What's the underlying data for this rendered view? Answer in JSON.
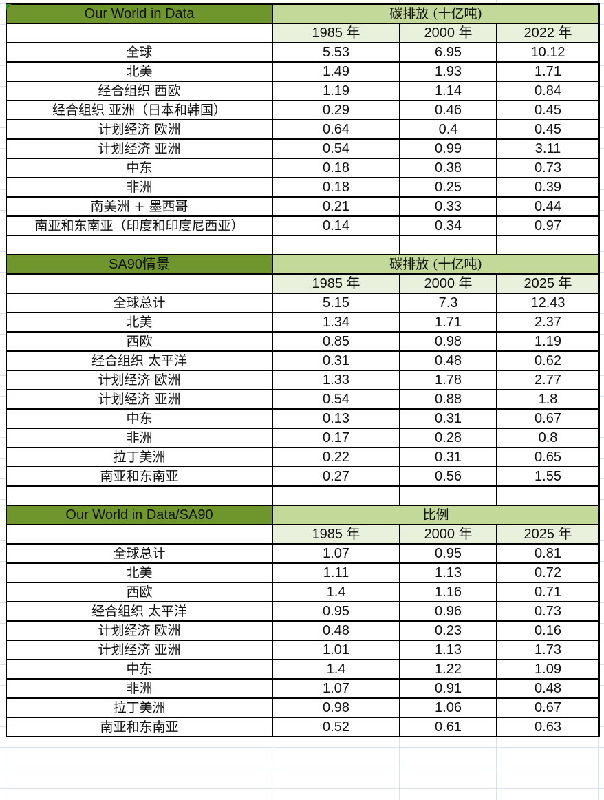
{
  "tables": [
    {
      "title": "Our World in Data",
      "header": "碳排放 (十亿吨)",
      "years": [
        "1985 年",
        "2000 年",
        "2022 年"
      ],
      "rows": [
        {
          "region": "全球",
          "values": [
            "5.53",
            "6.95",
            "10.12"
          ]
        },
        {
          "region": "北美",
          "values": [
            "1.49",
            "1.93",
            "1.71"
          ]
        },
        {
          "region": "经合组织 西欧",
          "values": [
            "1.19",
            "1.14",
            "0.84"
          ]
        },
        {
          "region": "经合组织 亚洲（日本和韩国）",
          "values": [
            "0.29",
            "0.46",
            "0.45"
          ]
        },
        {
          "region": "计划经济 欧洲",
          "values": [
            "0.64",
            "0.4",
            "0.45"
          ]
        },
        {
          "region": "计划经济 亚洲",
          "values": [
            "0.54",
            "0.99",
            "3.11"
          ]
        },
        {
          "region": "中东",
          "values": [
            "0.18",
            "0.38",
            "0.73"
          ]
        },
        {
          "region": "非洲",
          "values": [
            "0.18",
            "0.25",
            "0.39"
          ]
        },
        {
          "region": "南美洲 + 墨西哥",
          "values": [
            "0.21",
            "0.33",
            "0.44"
          ]
        },
        {
          "region": "南亚和东南亚（印度和印度尼西亚）",
          "values": [
            "0.14",
            "0.34",
            "0.97"
          ]
        }
      ],
      "blank_after": true
    },
    {
      "title": "SA90情景",
      "header": "碳排放 (十亿吨)",
      "years": [
        "1985 年",
        "2000 年",
        "2025 年"
      ],
      "rows": [
        {
          "region": "全球总计",
          "values": [
            "5.15",
            "7.3",
            "12.43"
          ]
        },
        {
          "region": "北美",
          "values": [
            "1.34",
            "1.71",
            "2.37"
          ]
        },
        {
          "region": "西欧",
          "values": [
            "0.85",
            "0.98",
            "1.19"
          ]
        },
        {
          "region": "经合组织 太平洋",
          "values": [
            "0.31",
            "0.48",
            "0.62"
          ]
        },
        {
          "region": "计划经济 欧洲",
          "values": [
            "1.33",
            "1.78",
            "2.77"
          ]
        },
        {
          "region": "计划经济 亚洲",
          "values": [
            "0.54",
            "0.88",
            "1.8"
          ]
        },
        {
          "region": "中东",
          "values": [
            "0.13",
            "0.31",
            "0.67"
          ]
        },
        {
          "region": "非洲",
          "values": [
            "0.17",
            "0.28",
            "0.8"
          ]
        },
        {
          "region": "拉丁美洲",
          "values": [
            "0.22",
            "0.31",
            "0.65"
          ]
        },
        {
          "region": "南亚和东南亚",
          "values": [
            "0.27",
            "0.56",
            "1.55"
          ]
        }
      ],
      "blank_after": true
    },
    {
      "title": "Our World in Data/SA90",
      "header": "比例",
      "years": [
        "1985 年",
        "2000 年",
        "2025 年"
      ],
      "rows": [
        {
          "region": "全球总计",
          "values": [
            "1.07",
            "0.95",
            "0.81"
          ]
        },
        {
          "region": "北美",
          "values": [
            "1.11",
            "1.13",
            "0.72"
          ]
        },
        {
          "region": "西欧",
          "values": [
            "1.4",
            "1.16",
            "0.71"
          ]
        },
        {
          "region": "经合组织 太平洋",
          "values": [
            "0.95",
            "0.96",
            "0.73"
          ]
        },
        {
          "region": "计划经济 欧洲",
          "values": [
            "0.48",
            "0.23",
            "0.16"
          ]
        },
        {
          "region": "计划经济 亚洲",
          "values": [
            "1.01",
            "1.13",
            "1.73"
          ]
        },
        {
          "region": "中东",
          "values": [
            "1.4",
            "1.22",
            "1.09"
          ]
        },
        {
          "region": "非洲",
          "values": [
            "1.07",
            "0.91",
            "0.48"
          ]
        },
        {
          "region": "拉丁美洲",
          "values": [
            "0.98",
            "1.06",
            "0.67"
          ]
        },
        {
          "region": "南亚和东南亚",
          "values": [
            "0.52",
            "0.61",
            "0.63"
          ]
        }
      ],
      "blank_after": false
    }
  ],
  "colors": {
    "title_fill": "#6f962c",
    "header_fill": "#c2d99a",
    "year_fill": "#e9f0dc"
  }
}
